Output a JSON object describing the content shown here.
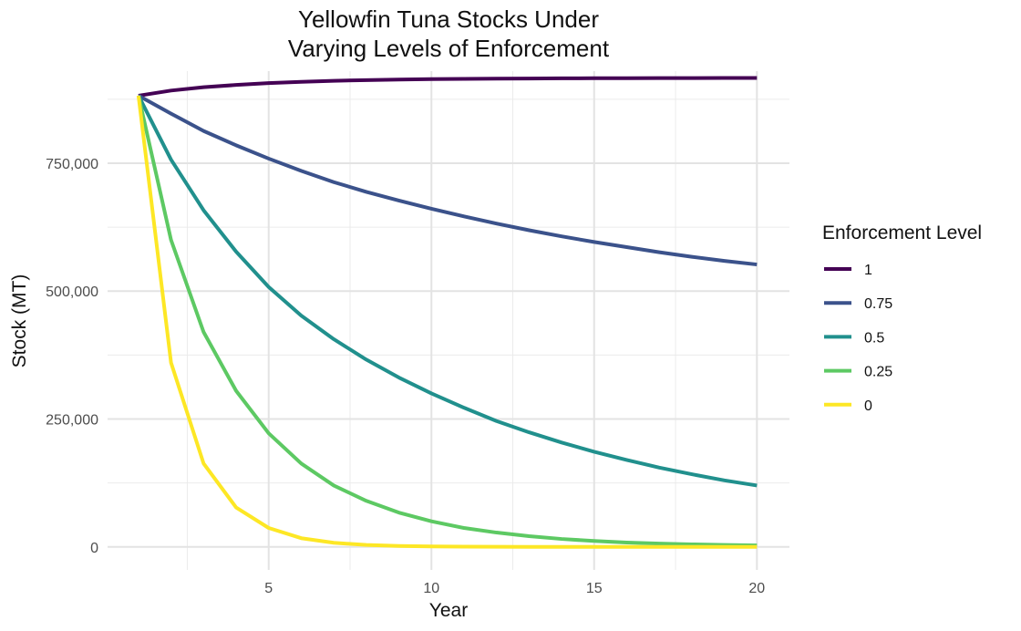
{
  "chart_data": {
    "type": "line",
    "title_lines": [
      "Yellowfin Tuna Stocks Under",
      "Varying Levels of Enforcement"
    ],
    "xlabel": "Year",
    "ylabel": "Stock (MT)",
    "xlim": [
      0.05,
      21.0
    ],
    "ylim": [
      -45000,
      930000
    ],
    "x_major_ticks": [
      5,
      10,
      15,
      20
    ],
    "x_tick_labels": [
      "5",
      "10",
      "15",
      "20"
    ],
    "x_minor_ticks": [
      2.5,
      7.5,
      12.5,
      17.5
    ],
    "y_major_ticks": [
      0,
      250000,
      500000,
      750000
    ],
    "y_tick_labels": [
      "0",
      "250,000",
      "500,000",
      "750,000"
    ],
    "y_minor_ticks": [
      125000,
      375000,
      625000,
      875000
    ],
    "grid": true,
    "legend": {
      "title": "Enforcement Level",
      "placement": "right",
      "entries": [
        "1",
        "0.75",
        "0.5",
        "0.25",
        "0"
      ]
    },
    "x": [
      1,
      2,
      3,
      4,
      5,
      6,
      7,
      8,
      9,
      10,
      11,
      12,
      13,
      14,
      15,
      16,
      17,
      18,
      19,
      20
    ],
    "series": [
      {
        "name": "1",
        "color": "#440154",
        "values": [
          882000,
          892000,
          898500,
          903000,
          906500,
          909000,
          911000,
          912500,
          913500,
          914300,
          914900,
          915300,
          915600,
          915900,
          916100,
          916300,
          916400,
          916500,
          916550,
          916600
        ]
      },
      {
        "name": "0.75",
        "color": "#3b528b",
        "values": [
          882000,
          847000,
          813000,
          785000,
          759000,
          735000,
          713000,
          694000,
          677000,
          661000,
          646000,
          632000,
          619000,
          607000,
          596000,
          586000,
          576000,
          567000,
          559000,
          552000
        ]
      },
      {
        "name": "0.5",
        "color": "#21908d",
        "values": [
          882000,
          757000,
          658000,
          577000,
          508000,
          452000,
          406000,
          366000,
          331000,
          300000,
          272000,
          246000,
          224000,
          204000,
          186000,
          170000,
          155000,
          142000,
          130000,
          120000
        ]
      },
      {
        "name": "0.25",
        "color": "#5dc963",
        "values": [
          882000,
          600000,
          420000,
          305000,
          222000,
          163000,
          120000,
          90000,
          67000,
          50000,
          37000,
          28000,
          21000,
          15500,
          11500,
          8500,
          6500,
          5000,
          3800,
          3000
        ]
      },
      {
        "name": "0",
        "color": "#fde725",
        "values": [
          882000,
          360000,
          163000,
          77000,
          37000,
          17000,
          8000,
          3700,
          1700,
          800,
          400,
          200,
          100,
          50,
          25,
          10,
          5,
          3,
          2,
          1
        ]
      }
    ]
  }
}
